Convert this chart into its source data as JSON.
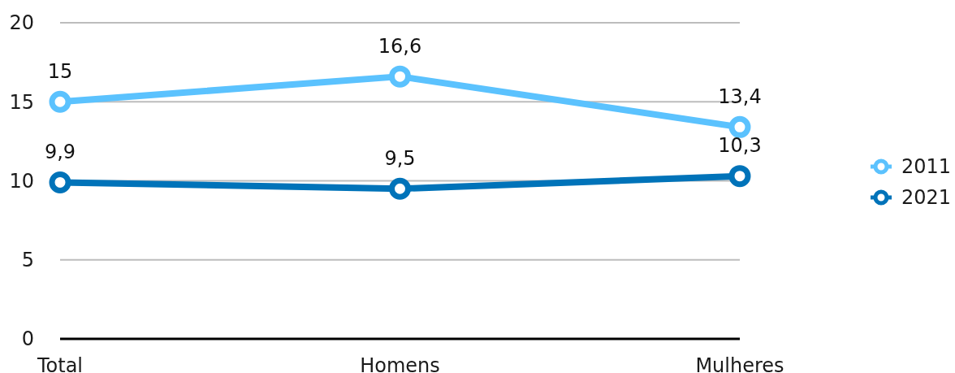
{
  "chart_data": {
    "type": "line",
    "categories": [
      "Total",
      "Homens",
      "Mulheres"
    ],
    "series": [
      {
        "name": "2011",
        "color": "#5bc2fe",
        "values": [
          15,
          16.6,
          13.4
        ],
        "value_labels": [
          "15",
          "16,6",
          "13,4"
        ]
      },
      {
        "name": "2021",
        "color": "#0073b9",
        "values": [
          9.9,
          9.5,
          10.3
        ],
        "value_labels": [
          "9,9",
          "9,5",
          "10,3"
        ]
      }
    ],
    "ylim": [
      0,
      20
    ],
    "yticks": [
      0,
      5,
      10,
      15,
      20
    ],
    "grid": "y",
    "legend": "right",
    "marker": "circle"
  }
}
